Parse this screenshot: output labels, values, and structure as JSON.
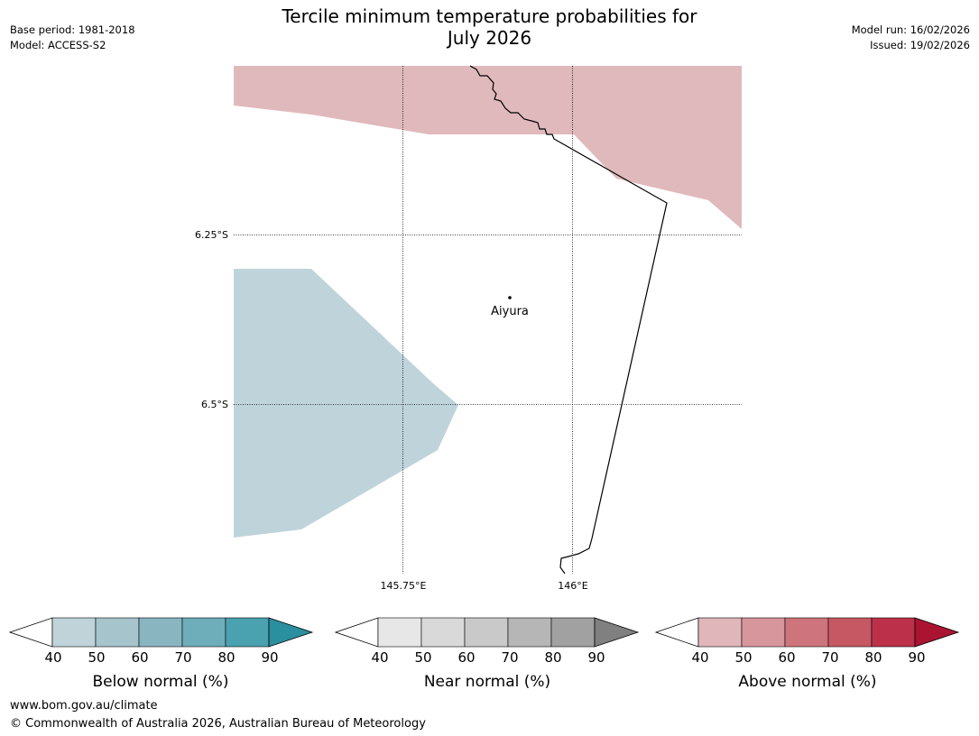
{
  "header": {
    "title_line1": "Tercile minimum temperature probabilities for",
    "title_line2": "July 2026",
    "base_period": "Base period: 1981-2018",
    "model": "Model: ACCESS-S2",
    "model_run": "Model run: 16/02/2026",
    "issued": "Issued: 19/02/2026"
  },
  "map": {
    "lat_labels": [
      "6.25°S",
      "6.5°S"
    ],
    "lon_labels": [
      "145.75°E",
      "146°E"
    ],
    "location": {
      "name": "Aiyura"
    },
    "region_colors": {
      "above": "#e0b9bd",
      "below": "#bfd4da"
    },
    "coastline_color": "#000000"
  },
  "colorbars": [
    {
      "label": "Below normal (%)",
      "ticks": [
        "40",
        "50",
        "60",
        "70",
        "80",
        "90"
      ],
      "colors": [
        "#bfd3d9",
        "#a6c4cb",
        "#89b5c1",
        "#6eadba",
        "#4aa1af",
        "#2a8f9f"
      ]
    },
    {
      "label": "Near normal (%)",
      "ticks": [
        "40",
        "50",
        "60",
        "70",
        "80",
        "90"
      ],
      "colors": [
        "#e7e7e7",
        "#d9d9d9",
        "#c9c9c9",
        "#b6b6b6",
        "#a1a1a1",
        "#808080"
      ]
    },
    {
      "label": "Above normal (%)",
      "ticks": [
        "40",
        "50",
        "60",
        "70",
        "80",
        "90"
      ],
      "colors": [
        "#e0b6bb",
        "#d7959c",
        "#cd747c",
        "#c65864",
        "#bc304a",
        "#ab1431"
      ]
    }
  ],
  "footer": {
    "url": "www.bom.gov.au/climate",
    "copyright": "© Commonwealth of Australia 2026, Australian Bureau of Meteorology"
  }
}
